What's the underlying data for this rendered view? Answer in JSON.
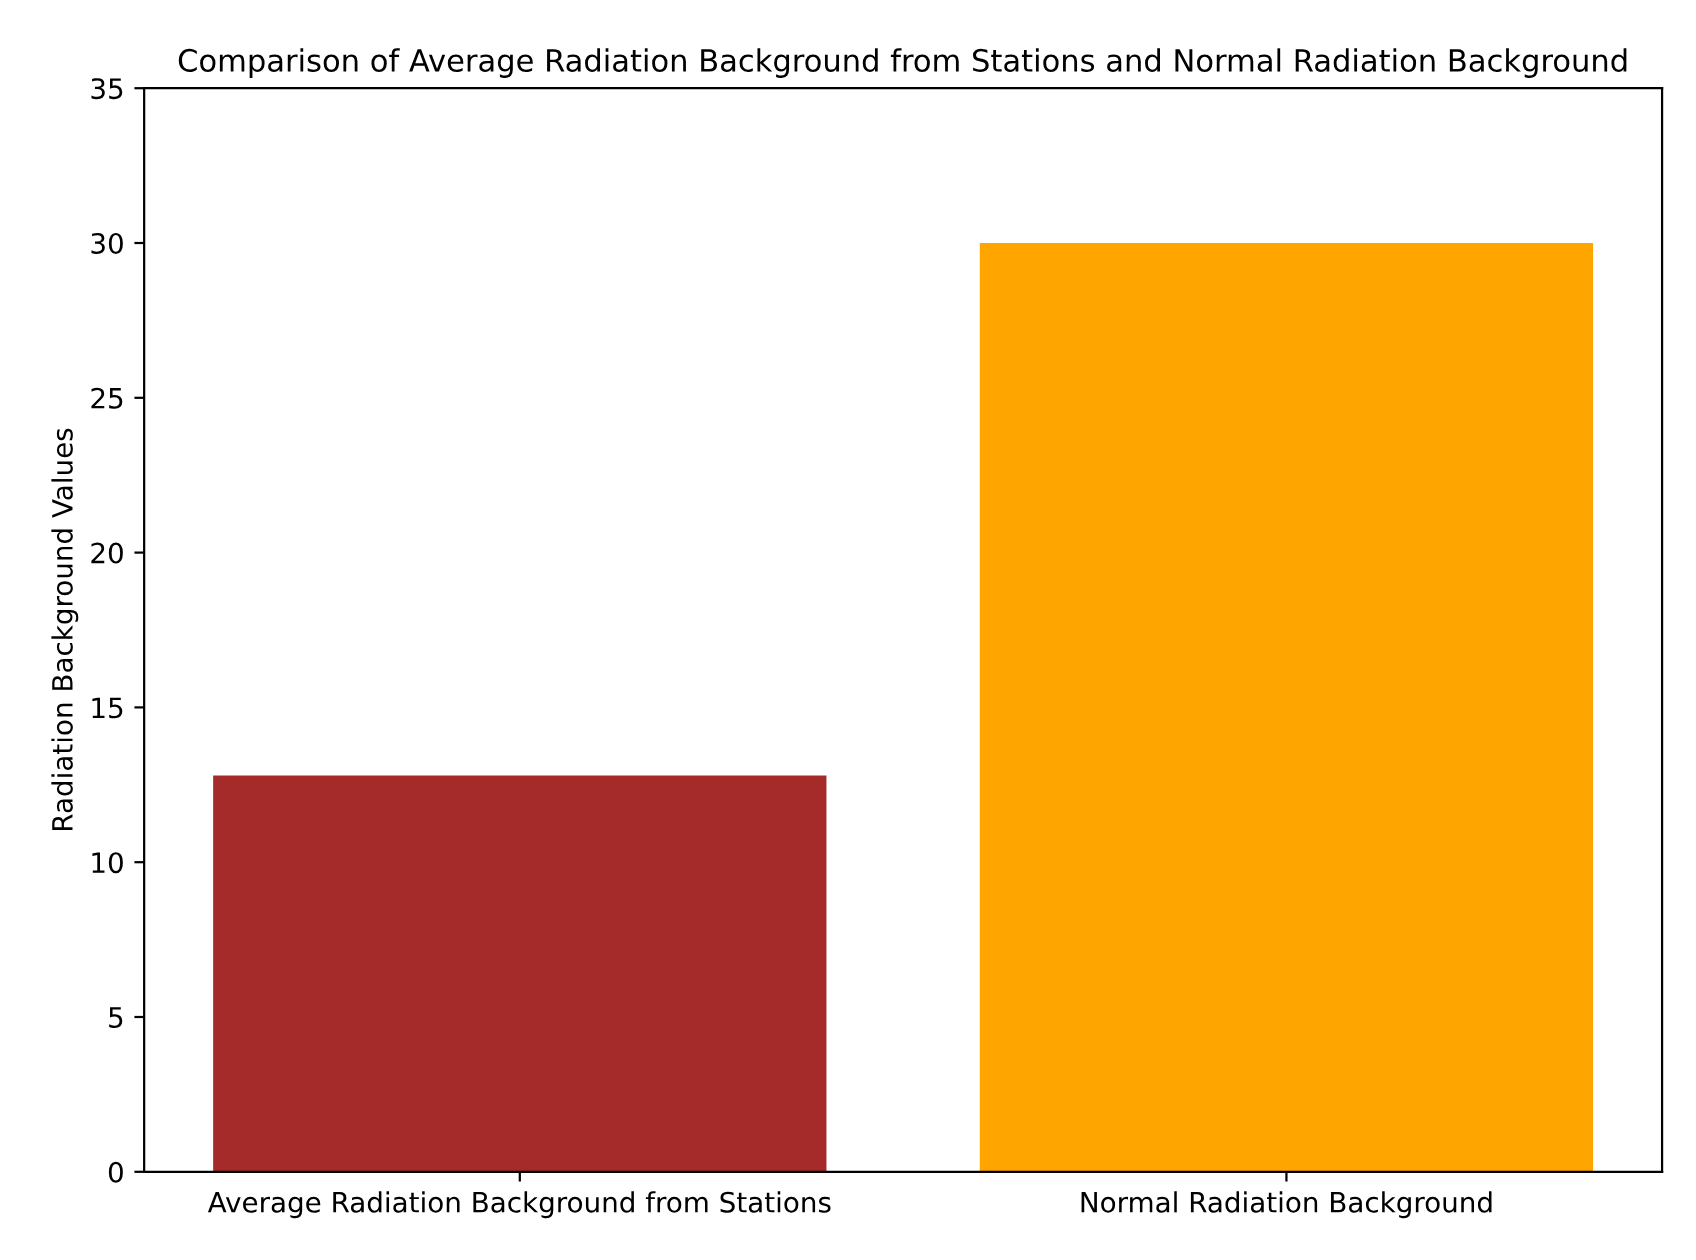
{
  "chart_data": {
    "type": "bar",
    "title": "Comparison of Average Radiation Background from Stations and Normal Radiation Background",
    "ylabel": "Radiation Background Values",
    "categories": [
      "Average Radiation Background from Stations",
      "Normal Radiation Background"
    ],
    "values": [
      12.8,
      30
    ],
    "colors": [
      "#a52a2a",
      "#ffa500"
    ],
    "ylim": [
      0,
      35
    ],
    "yticks": [
      0,
      5,
      10,
      15,
      20,
      25,
      30,
      35
    ],
    "grid": false,
    "legend": false
  }
}
